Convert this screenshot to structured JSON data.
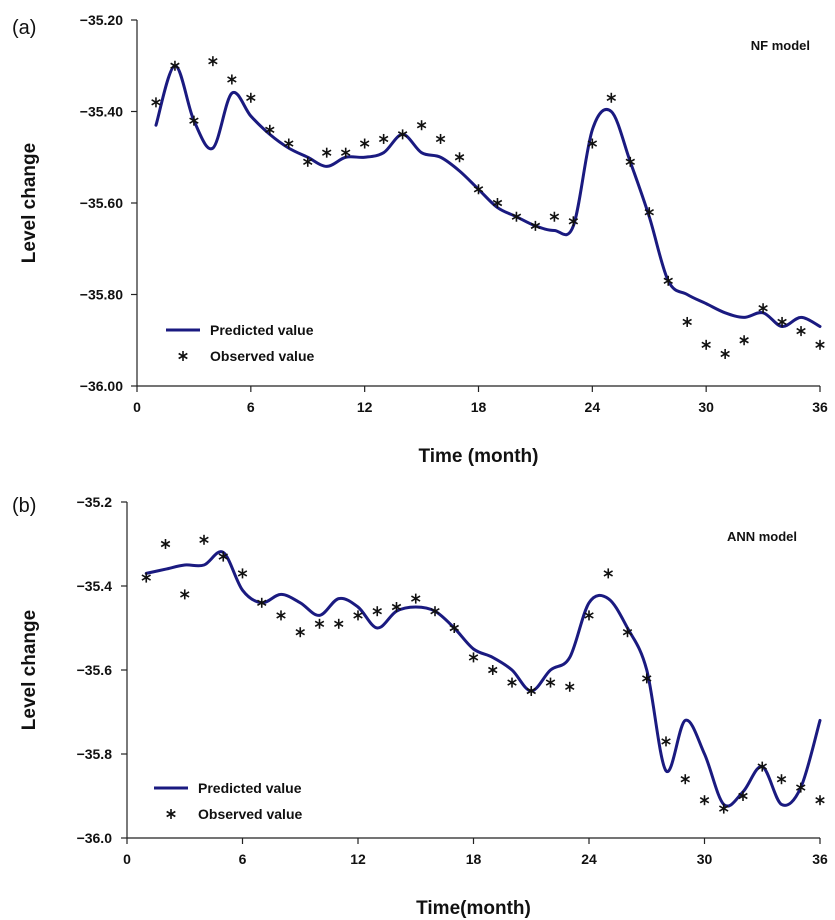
{
  "chart_data": [
    {
      "type": "line",
      "panel_label": "(a)",
      "model_label": "NF model",
      "xlabel": "Time (month)",
      "ylabel": "Level change",
      "xlim": [
        0,
        36
      ],
      "ylim": [
        -36.0,
        -35.2
      ],
      "xticks": [
        0,
        6,
        12,
        18,
        24,
        30,
        36
      ],
      "yticks": [
        -36.0,
        -35.8,
        -35.6,
        -35.4,
        -35.2
      ],
      "ytick_labels": [
        "−36.00",
        "−35.80",
        "−35.60",
        "−35.40",
        "−35.20"
      ],
      "xtick_labels": [
        "0",
        "6",
        "12",
        "18",
        "24",
        "30",
        "36"
      ],
      "grid": false,
      "legend_position": "bottom-left",
      "series": [
        {
          "name": "Predicted value",
          "style": "line",
          "color": "#1a1a80",
          "x": [
            1,
            2,
            3,
            4,
            5,
            6,
            7,
            8,
            9,
            10,
            11,
            12,
            13,
            14,
            15,
            16,
            17,
            18,
            19,
            20,
            21,
            22,
            23,
            24,
            25,
            26,
            27,
            28,
            29,
            30,
            31,
            32,
            33,
            34,
            35,
            36
          ],
          "y": [
            -35.43,
            -35.3,
            -35.42,
            -35.48,
            -35.36,
            -35.41,
            -35.45,
            -35.48,
            -35.5,
            -35.52,
            -35.5,
            -35.5,
            -35.49,
            -35.45,
            -35.49,
            -35.5,
            -35.53,
            -35.57,
            -35.61,
            -35.63,
            -35.65,
            -35.66,
            -35.65,
            -35.44,
            -35.4,
            -35.51,
            -35.63,
            -35.77,
            -35.8,
            -35.82,
            -35.84,
            -35.85,
            -35.84,
            -35.87,
            -35.85,
            -35.87
          ]
        },
        {
          "name": "Observed value",
          "style": "markers",
          "color": "#111111",
          "x": [
            1,
            2,
            3,
            4,
            5,
            6,
            7,
            8,
            9,
            10,
            11,
            12,
            13,
            14,
            15,
            16,
            17,
            18,
            19,
            20,
            21,
            22,
            23,
            24,
            25,
            26,
            27,
            28,
            29,
            30,
            31,
            32,
            33,
            34,
            35,
            36
          ],
          "y": [
            -35.38,
            -35.3,
            -35.42,
            -35.29,
            -35.33,
            -35.37,
            -35.44,
            -35.47,
            -35.51,
            -35.49,
            -35.49,
            -35.47,
            -35.46,
            -35.45,
            -35.43,
            -35.46,
            -35.5,
            -35.57,
            -35.6,
            -35.63,
            -35.65,
            -35.63,
            -35.64,
            -35.47,
            -35.37,
            -35.51,
            -35.62,
            -35.77,
            -35.86,
            -35.91,
            -35.93,
            -35.9,
            -35.83,
            -35.86,
            -35.88,
            -35.91
          ]
        }
      ]
    },
    {
      "type": "line",
      "panel_label": "(b)",
      "model_label": "ANN model",
      "xlabel": "Time(month)",
      "ylabel": "Level change",
      "xlim": [
        0,
        36
      ],
      "ylim": [
        -36.0,
        -35.2
      ],
      "xticks": [
        0,
        6,
        12,
        18,
        24,
        30,
        36
      ],
      "yticks": [
        -36.0,
        -35.8,
        -35.6,
        -35.4,
        -35.2
      ],
      "ytick_labels": [
        "−36.0",
        "−35.8",
        "−35.6",
        "−35.4",
        "−35.2"
      ],
      "xtick_labels": [
        "0",
        "6",
        "12",
        "18",
        "24",
        "30",
        "36"
      ],
      "grid": false,
      "legend_position": "bottom-left",
      "series": [
        {
          "name": "Predicted value",
          "style": "line",
          "color": "#1a1a80",
          "x": [
            1,
            2,
            3,
            4,
            5,
            6,
            7,
            8,
            9,
            10,
            11,
            12,
            13,
            14,
            15,
            16,
            17,
            18,
            19,
            20,
            21,
            22,
            23,
            24,
            25,
            26,
            27,
            28,
            29,
            30,
            31,
            32,
            33,
            34,
            35,
            36
          ],
          "y": [
            -35.37,
            -35.36,
            -35.35,
            -35.35,
            -35.32,
            -35.41,
            -35.44,
            -35.42,
            -35.44,
            -35.47,
            -35.43,
            -35.45,
            -35.5,
            -35.46,
            -35.45,
            -35.46,
            -35.5,
            -35.55,
            -35.57,
            -35.6,
            -35.65,
            -35.6,
            -35.57,
            -35.44,
            -35.43,
            -35.5,
            -35.6,
            -35.84,
            -35.72,
            -35.8,
            -35.92,
            -35.89,
            -35.83,
            -35.92,
            -35.88,
            -35.72
          ]
        },
        {
          "name": "Observed value",
          "style": "markers",
          "color": "#111111",
          "x": [
            1,
            2,
            3,
            4,
            5,
            6,
            7,
            8,
            9,
            10,
            11,
            12,
            13,
            14,
            15,
            16,
            17,
            18,
            19,
            20,
            21,
            22,
            23,
            24,
            25,
            26,
            27,
            28,
            29,
            30,
            31,
            32,
            33,
            34,
            35,
            36
          ],
          "y": [
            -35.38,
            -35.3,
            -35.42,
            -35.29,
            -35.33,
            -35.37,
            -35.44,
            -35.47,
            -35.51,
            -35.49,
            -35.49,
            -35.47,
            -35.46,
            -35.45,
            -35.43,
            -35.46,
            -35.5,
            -35.57,
            -35.6,
            -35.63,
            -35.65,
            -35.63,
            -35.64,
            -35.47,
            -35.37,
            -35.51,
            -35.62,
            -35.77,
            -35.86,
            -35.91,
            -35.93,
            -35.9,
            -35.83,
            -35.86,
            -35.88,
            -35.91
          ]
        }
      ]
    }
  ]
}
